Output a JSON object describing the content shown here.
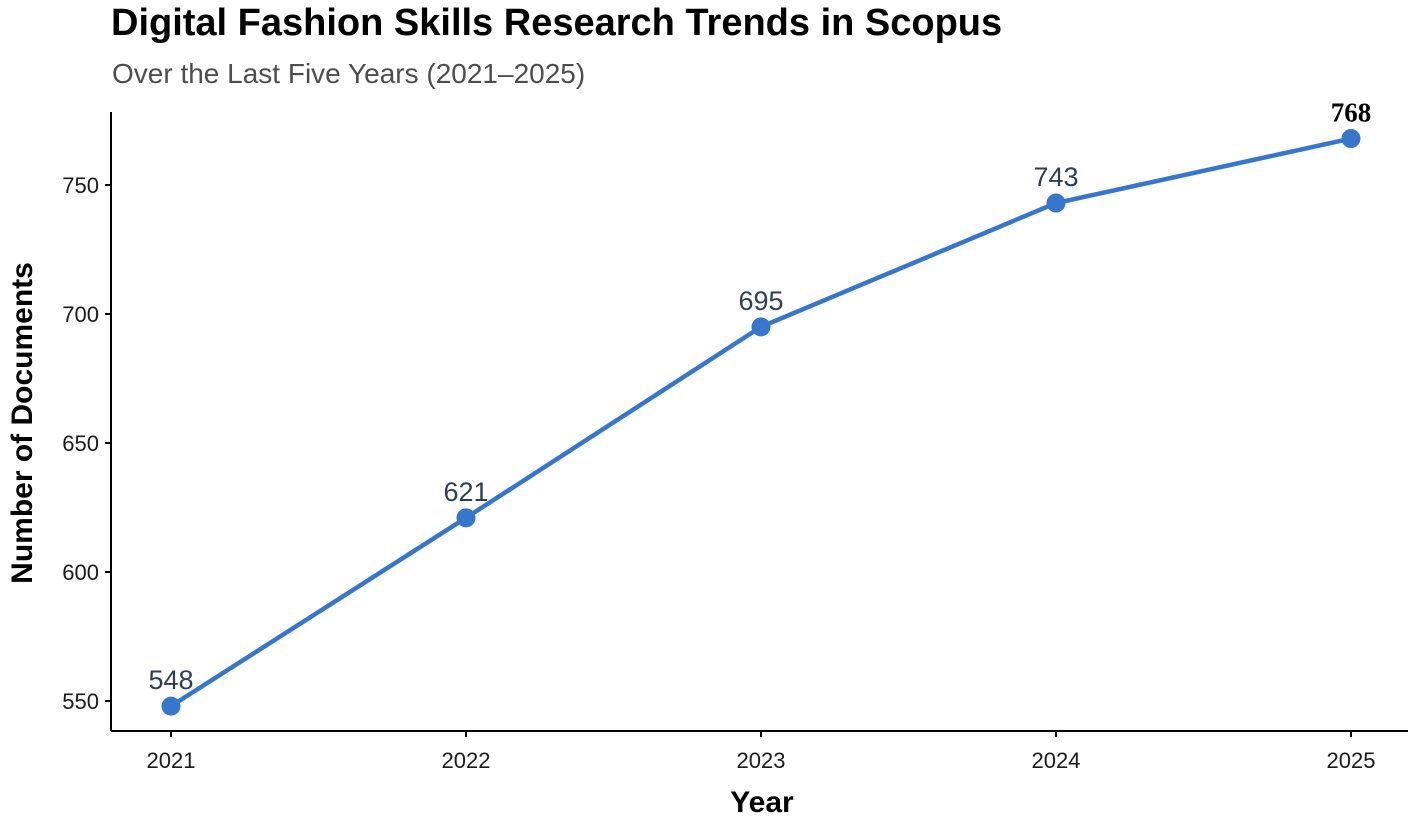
{
  "colors": {
    "line": "#3776cd",
    "point": "#3776cd",
    "label": "#2f3e50",
    "highlight_label": "#000000",
    "axis": "#000000"
  },
  "chart_data": {
    "type": "line",
    "title": "Digital Fashion Skills Research Trends in Scopus",
    "subtitle": "Over the Last Five Years (2021–2025)",
    "xlabel": "Year",
    "ylabel": "Number of Documents",
    "x": [
      "2021",
      "2022",
      "2023",
      "2024",
      "2025"
    ],
    "series": [
      {
        "values": [
          548,
          621,
          695,
          743,
          768
        ]
      }
    ],
    "data_labels": [
      "548",
      "621",
      "695",
      "743",
      "768"
    ],
    "highlighted_index": 4,
    "yticks": [
      550,
      600,
      650,
      700,
      750
    ],
    "ytick_labels": [
      "550",
      "600",
      "650",
      "700",
      "750"
    ],
    "ylim": [
      540,
      780
    ],
    "grid": false,
    "legend": "none"
  }
}
